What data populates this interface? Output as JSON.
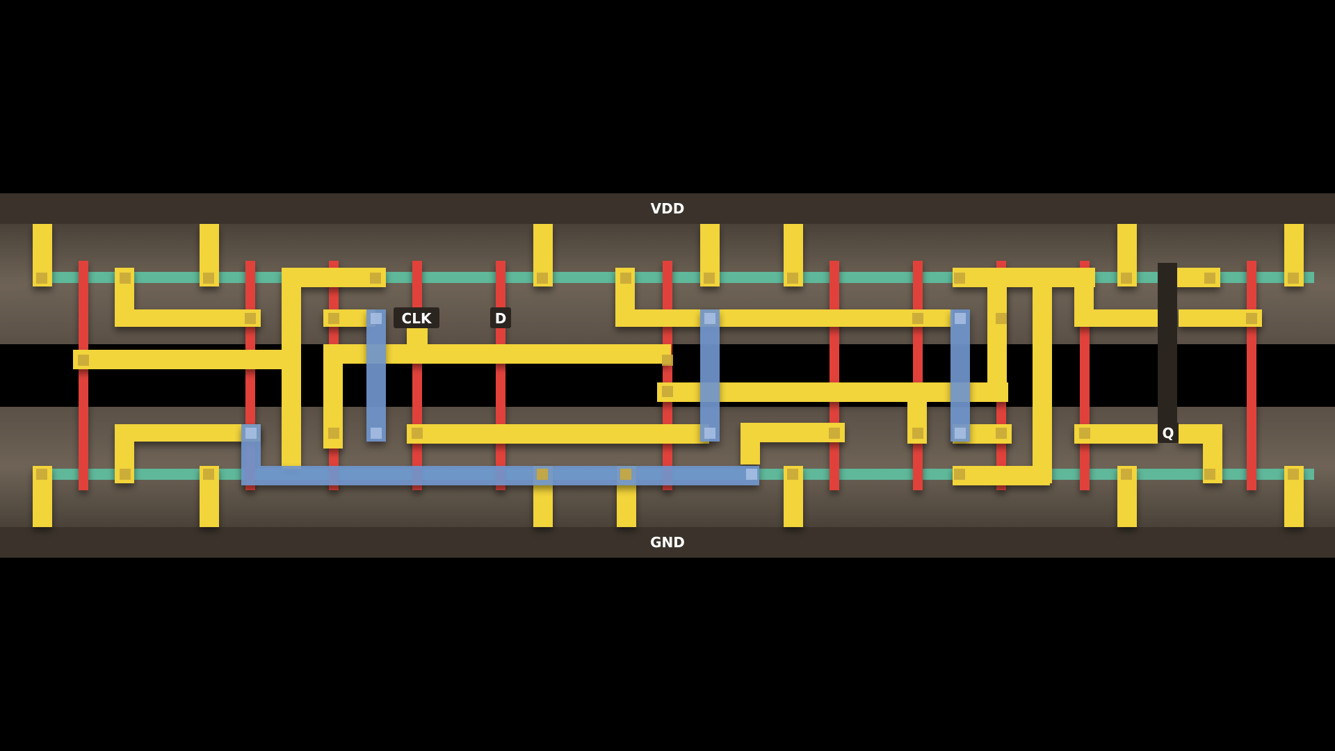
{
  "rails": {
    "vdd_label": "VDD",
    "gnd_label": "GND"
  },
  "pins": {
    "clk_label": "CLK",
    "d_label": "D",
    "q_label": "Q"
  },
  "colors": {
    "background": "#000000",
    "rail": "#3b332b",
    "diffusion": "#6f6356",
    "active_band": "#5fb89a",
    "poly": "#e0433a",
    "metal1": "#f2d43a",
    "metal2": "#6f95cc",
    "contact": "#c9a93a",
    "pin_label_bg": "#2b2520",
    "label_text": "#ffffff"
  }
}
